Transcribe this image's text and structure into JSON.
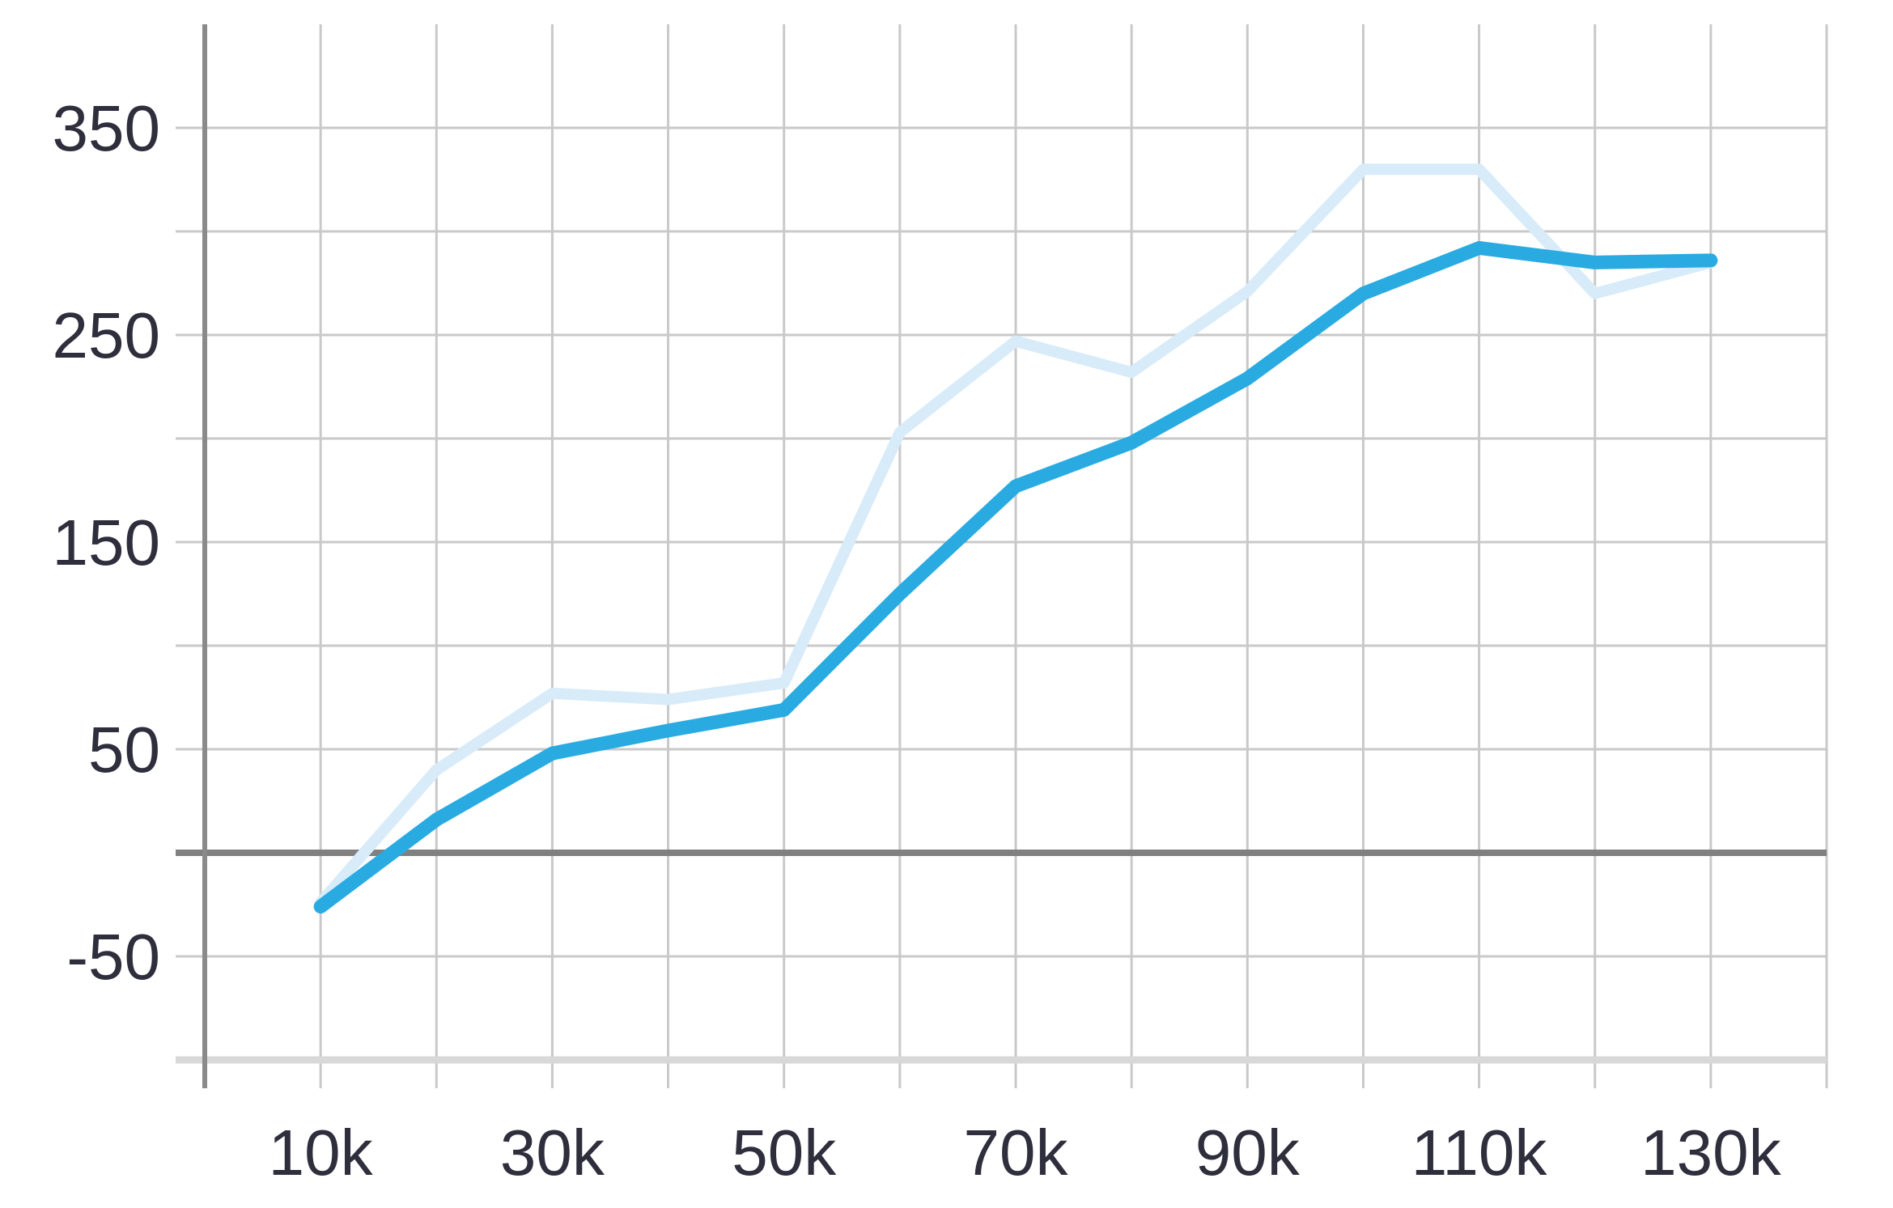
{
  "chart_data": {
    "type": "line",
    "title": "",
    "xlabel": "",
    "ylabel": "",
    "x": [
      10000,
      20000,
      30000,
      40000,
      50000,
      60000,
      70000,
      80000,
      90000,
      100000,
      110000,
      120000,
      130000
    ],
    "series": [
      {
        "name": "light-blue-series",
        "color": "#D8EBF9",
        "stroke_width": 14,
        "values": [
          -24,
          40,
          77,
          74,
          82,
          203,
          247,
          232,
          271,
          330,
          330,
          270,
          285
        ]
      },
      {
        "name": "bold-blue-series",
        "color": "#29ABE2",
        "stroke_width": 17,
        "values": [
          -26,
          16,
          48,
          59,
          69,
          125,
          177,
          198,
          229,
          270,
          292,
          285,
          286
        ]
      }
    ],
    "xlim": [
      0,
      140000
    ],
    "ylim": [
      -100,
      400
    ],
    "x_tick_values": [
      10000,
      30000,
      50000,
      70000,
      90000,
      110000,
      130000
    ],
    "x_tick_labels": [
      "10k",
      "30k",
      "50k",
      "70k",
      "90k",
      "110k",
      "130k"
    ],
    "y_tick_values": [
      350,
      250,
      150,
      50,
      -50
    ],
    "y_tick_labels": [
      "350",
      "250",
      "150",
      "50",
      "-50"
    ],
    "grid": {
      "x_interval": 10000,
      "y_interval": 50,
      "visible": true
    },
    "zero_line": {
      "visible": true,
      "value": 0
    },
    "legend": "none",
    "colors": {
      "gridline": "#C9C9C9",
      "zero_line": "#808080",
      "y_axis_line": "#8A8A8A",
      "bottom_border": "#D8D8D8",
      "tick_label": "#2E2E3C",
      "background": "#FFFFFF"
    },
    "tick_label_font_px": 80
  }
}
